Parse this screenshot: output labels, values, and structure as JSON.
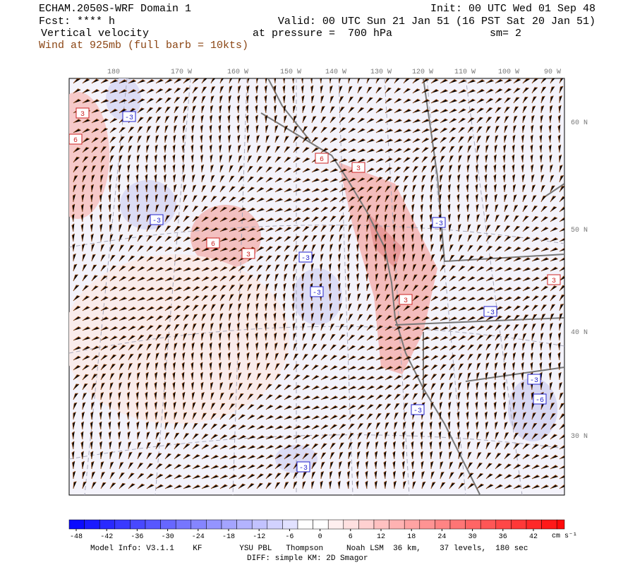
{
  "header": {
    "title": "ECHAM.2050S-WRF Domain 1",
    "forecast": "Fcst: **** h",
    "field": "Vertical velocity",
    "wind": "Wind at 925mb (full barb = 10kts)",
    "init": "Init: 00 UTC Wed 01 Sep 48",
    "valid": "Valid: 00 UTC Sun 21 Jan 51 (16 PST Sat 20 Jan 51)",
    "pressure": "at pressure =  700 hPa",
    "smoothing": "sm= 2"
  },
  "map": {
    "longitude_labels": [
      "180",
      "170 W",
      "160 W",
      "150 W",
      "140 W",
      "130 W",
      "120 W",
      "110 W",
      "100 W",
      "90 W"
    ],
    "latitude_labels": [
      "60 N",
      "50 N",
      "40 N",
      "30 N"
    ],
    "contour_labels": [
      "3",
      "-3",
      "6",
      "-3",
      "6",
      "3",
      "-3",
      "-3",
      "6",
      "3",
      "-3",
      "3",
      "-3",
      "3",
      "-3",
      "-6",
      "-3",
      "-3"
    ]
  },
  "colorbar": {
    "ticks": [
      -48,
      -42,
      -36,
      -30,
      -24,
      -18,
      -12,
      -6,
      0,
      6,
      12,
      18,
      24,
      30,
      36,
      42
    ],
    "unit": "cm s⁻¹"
  },
  "footer": {
    "model_info": "Model Info: V3.1.1    KF        YSU PBL   Thompson     Noah LSM  36 km,    37 levels,  180 sec",
    "diff": "DIFF: simple KM: 2D Smagor"
  }
}
